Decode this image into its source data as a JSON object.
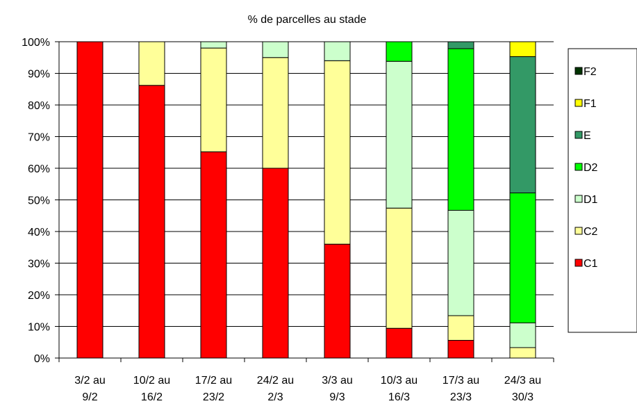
{
  "chart_data": {
    "type": "bar",
    "stacked": true,
    "title": "% de parcelles au stade",
    "xlabel": "",
    "ylabel": "",
    "ylim": [
      0,
      100
    ],
    "y_ticks": [
      "0%",
      "10%",
      "20%",
      "30%",
      "40%",
      "50%",
      "60%",
      "70%",
      "80%",
      "90%",
      "100%"
    ],
    "categories": [
      [
        "3/2 au",
        "9/2"
      ],
      [
        "10/2 au",
        "16/2"
      ],
      [
        "17/2 au",
        "23/2"
      ],
      [
        "24/2 au",
        "2/3"
      ],
      [
        "3/3 au",
        "9/3"
      ],
      [
        "10/3 au",
        "16/3"
      ],
      [
        "17/3 au",
        "23/3"
      ],
      [
        "24/3 au",
        "30/3"
      ]
    ],
    "series": [
      {
        "name": "C1",
        "color": "#ff0000",
        "values": [
          100,
          86.2,
          65.2,
          60.0,
          36.0,
          9.4,
          5.6,
          0
        ]
      },
      {
        "name": "C2",
        "color": "#ffff99",
        "values": [
          0,
          13.8,
          32.8,
          35.0,
          58.0,
          38.0,
          7.8,
          3.3
        ]
      },
      {
        "name": "D1",
        "color": "#ccffcc",
        "values": [
          0,
          0,
          2.0,
          5.0,
          6.0,
          46.4,
          33.3,
          7.8
        ]
      },
      {
        "name": "D2",
        "color": "#00ff00",
        "values": [
          0,
          0,
          0,
          0,
          0,
          6.2,
          51.1,
          41.1
        ]
      },
      {
        "name": "E",
        "color": "#339966",
        "values": [
          0,
          0,
          0,
          0,
          0,
          0,
          2.2,
          43.1
        ]
      },
      {
        "name": "F1",
        "color": "#ffff00",
        "values": [
          0,
          0,
          0,
          0,
          0,
          0,
          0,
          4.7
        ]
      },
      {
        "name": "F2",
        "color": "#003300",
        "values": [
          0,
          0,
          0,
          0,
          0,
          0,
          0,
          0
        ]
      }
    ],
    "legend_position": "right",
    "grid": true
  }
}
